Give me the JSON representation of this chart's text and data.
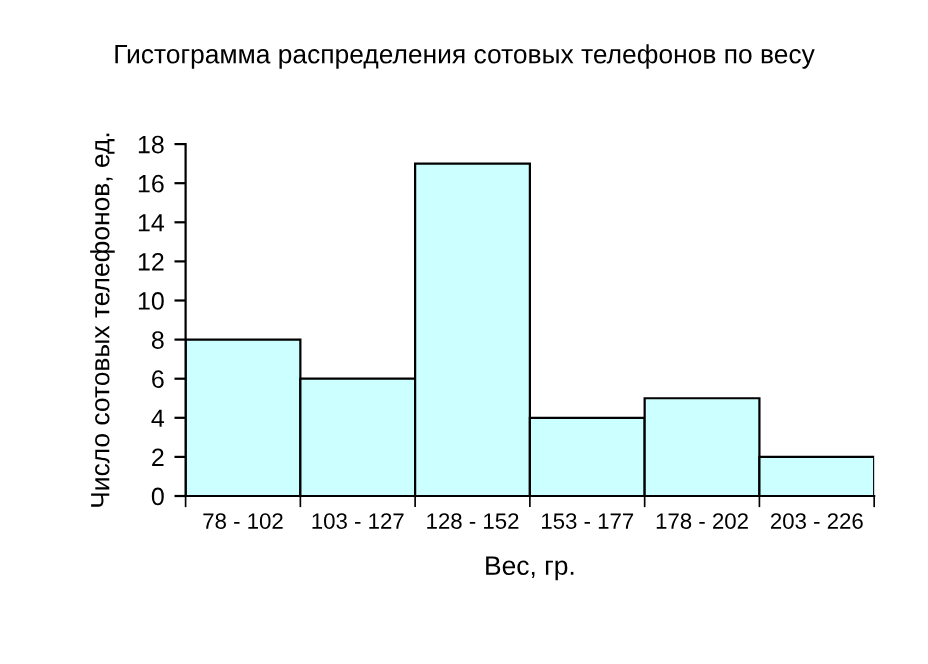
{
  "chart_data": {
    "type": "bar",
    "title": "Гистограмма распределения сотовых телефонов по весу",
    "xlabel": "Вес, гр.",
    "ylabel": "Число сотовых телефонов, ед.",
    "categories": [
      "78 - 102",
      "103 - 127",
      "128 - 152",
      "153 - 177",
      "178 - 202",
      "203 - 226"
    ],
    "values": [
      8,
      6,
      17,
      4,
      5,
      2
    ],
    "color": "#ccffff",
    "ylim": [
      0,
      18
    ],
    "yticks": [
      0,
      2,
      4,
      6,
      8,
      10,
      12,
      14,
      16,
      18
    ],
    "grid": false
  }
}
